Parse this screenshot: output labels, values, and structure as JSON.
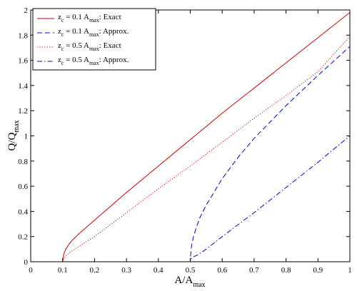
{
  "chart_data": {
    "type": "line",
    "xlabel": "A/A",
    "xlabel_sub": "max",
    "ylabel": "Q/Q",
    "ylabel_sub": "max",
    "xlim": [
      0,
      1
    ],
    "ylim": [
      0,
      2
    ],
    "x_ticks": [
      "0",
      "0.1",
      "0.2",
      "0.3",
      "0.4",
      "0.5",
      "0.6",
      "0.7",
      "0.8",
      "0.9",
      "1"
    ],
    "y_ticks": [
      "0",
      "0.2",
      "0.4",
      "0.6",
      "0.8",
      "1",
      "1.2",
      "1.4",
      "1.6",
      "1.8",
      "2"
    ],
    "grid": false,
    "legend_position": "top-left",
    "series": [
      {
        "name": "z_c = 0.1 A_max: Exact",
        "legend": {
          "var": "z",
          "var_sub": "c",
          "mid": " = 0.1 A",
          "mid_sub": "max",
          "tail": ": Exact"
        },
        "color": "#cc0000",
        "dash": "solid",
        "x": [
          0,
          0.1,
          0.1025,
          0.105,
          0.11,
          0.12,
          0.13,
          0.15,
          0.2,
          0.25,
          0.3,
          0.4,
          0.5,
          0.6,
          0.7,
          0.8,
          0.9,
          1.0
        ],
        "y": [
          0,
          0,
          0.05,
          0.07,
          0.1,
          0.14,
          0.17,
          0.22,
          0.33,
          0.44,
          0.55,
          0.76,
          0.97,
          1.18,
          1.38,
          1.58,
          1.78,
          1.98
        ]
      },
      {
        "name": "z_c = 0.1 A_max: Approx.",
        "legend": {
          "var": "z",
          "var_sub": "c",
          "mid": " = 0.1 A",
          "mid_sub": "max",
          "tail": ": Approx."
        },
        "color": "#0000cc",
        "dash": "dashed",
        "x": [
          0,
          0.5,
          0.5025,
          0.505,
          0.51,
          0.52,
          0.53,
          0.55,
          0.6,
          0.65,
          0.7,
          0.8,
          0.9,
          1.0
        ],
        "y": [
          0,
          0,
          0.1,
          0.14,
          0.2,
          0.28,
          0.35,
          0.45,
          0.66,
          0.83,
          0.98,
          1.24,
          1.48,
          1.71
        ]
      },
      {
        "name": "z_c = 0.5 A_max: Exact",
        "legend": {
          "var": "z",
          "var_sub": "c",
          "mid": " = 0.5 A",
          "mid_sub": "max",
          "tail": ": Exact"
        },
        "color": "#cc0000",
        "dash": "dotted",
        "x": [
          0,
          0.1,
          0.101,
          0.105,
          0.11,
          0.12,
          0.15,
          0.2,
          0.3,
          0.4,
          0.5,
          0.6,
          0.7,
          0.8,
          0.9,
          1.0
        ],
        "y": [
          0,
          0,
          0.01,
          0.03,
          0.045,
          0.07,
          0.12,
          0.2,
          0.39,
          0.58,
          0.76,
          0.95,
          1.14,
          1.32,
          1.51,
          1.79
        ]
      },
      {
        "name": "z_c = 0.5 A_max: Approx.",
        "legend": {
          "var": "z",
          "var_sub": "c",
          "mid": " = 0.5 A",
          "mid_sub": "max",
          "tail": ": Approx."
        },
        "color": "#0000cc",
        "dash": "dashdot",
        "x": [
          0,
          0.5,
          0.505,
          0.51,
          0.52,
          0.55,
          0.6,
          0.7,
          0.8,
          0.9,
          1.0
        ],
        "y": [
          0,
          0,
          0.03,
          0.04,
          0.05,
          0.1,
          0.2,
          0.39,
          0.59,
          0.79,
          1.0
        ]
      }
    ]
  }
}
